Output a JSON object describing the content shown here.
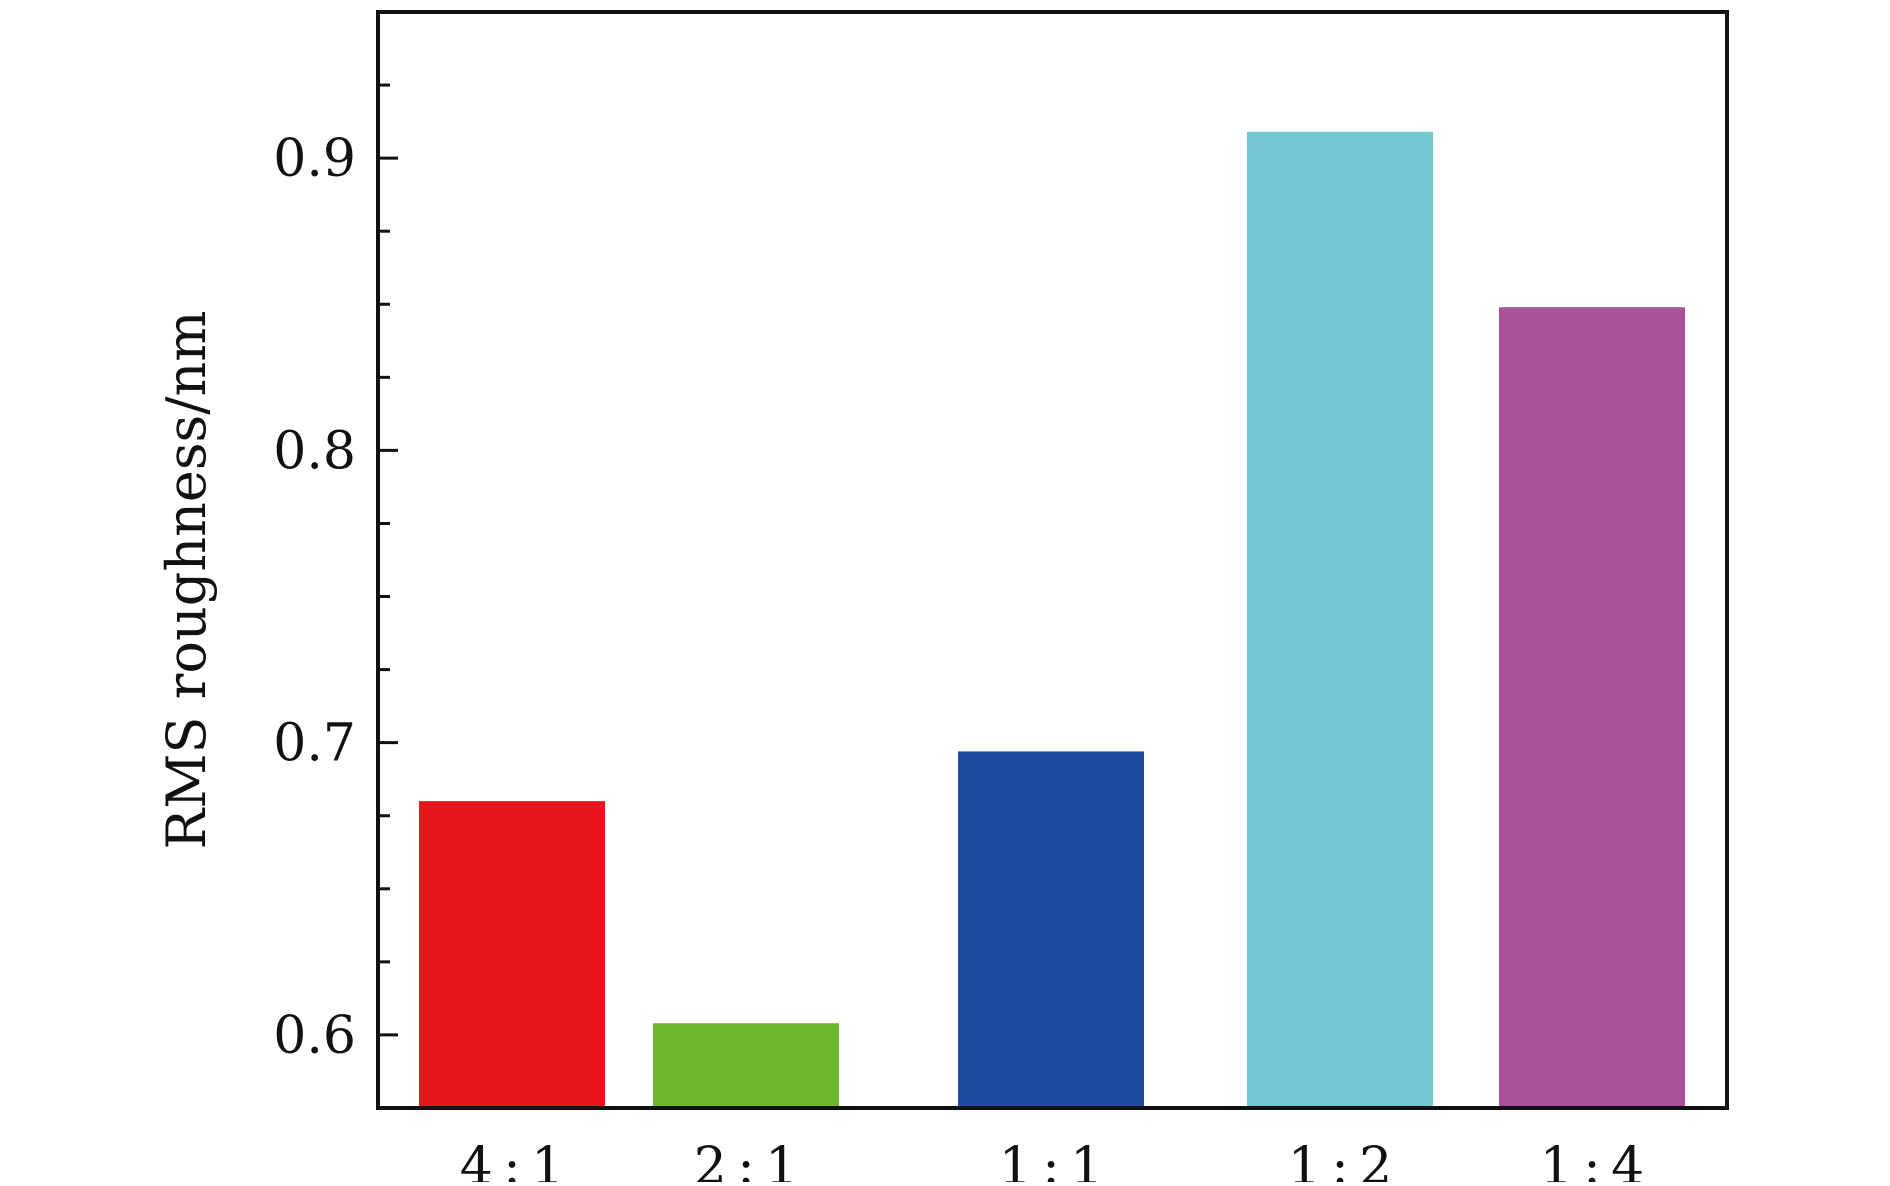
{
  "chart_data": {
    "type": "bar",
    "title": "",
    "xlabel": "",
    "ylabel": "RMS roughness/nm",
    "categories": [
      "4 : 1",
      "2 : 1",
      "1 : 1",
      "1 : 2",
      "1 : 4"
    ],
    "values": [
      0.68,
      0.604,
      0.697,
      0.909,
      0.849
    ],
    "colors": [
      "#E8171D",
      "#6DB72C",
      "#1F4C9E",
      "#72C7D3",
      "#A8539C"
    ],
    "ylim": [
      0.575,
      0.95
    ],
    "yticks_major": [
      0.6,
      0.7,
      0.8,
      0.9
    ],
    "ytick_labels": [
      "0.6",
      "0.7",
      "0.8",
      "0.9"
    ],
    "yticks_minor": [
      0.625,
      0.65,
      0.675,
      0.725,
      0.75,
      0.775,
      0.825,
      0.85,
      0.875,
      0.925
    ],
    "grid": false,
    "legend": "none"
  }
}
